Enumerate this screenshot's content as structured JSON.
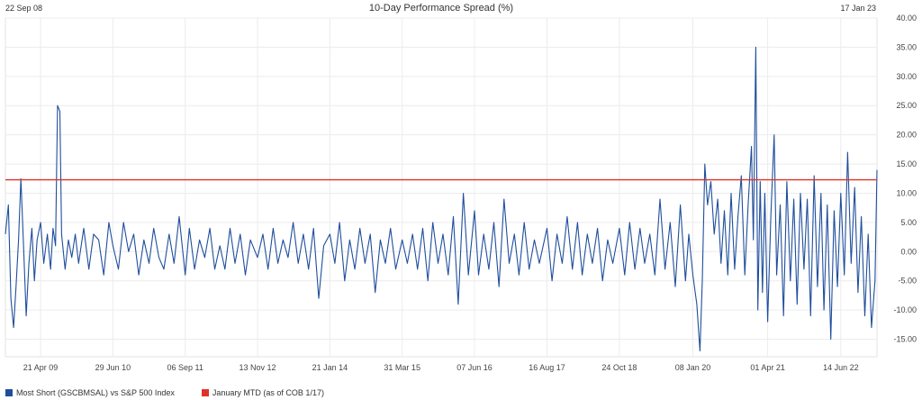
{
  "chart_data": {
    "type": "line",
    "title": "10-Day Performance Spread (%)",
    "start_label": "22 Sep 08",
    "end_label": "17 Jan 23",
    "x_range": [
      "2008-09-22",
      "2023-01-17"
    ],
    "ylim": [
      -18,
      40
    ],
    "y_ticks": [
      "40.00",
      "35.00",
      "30.00",
      "25.00",
      "20.00",
      "15.00",
      "10.00",
      "5.00",
      "0.00",
      "-5.00",
      "-10.00",
      "-15.00"
    ],
    "x_ticks": [
      {
        "label": "21 Apr 09",
        "date": "2009-04-21"
      },
      {
        "label": "29 Jun 10",
        "date": "2010-06-29"
      },
      {
        "label": "06 Sep 11",
        "date": "2011-09-06"
      },
      {
        "label": "13 Nov 12",
        "date": "2012-11-13"
      },
      {
        "label": "21 Jan 14",
        "date": "2014-01-21"
      },
      {
        "label": "31 Mar 15",
        "date": "2015-03-31"
      },
      {
        "label": "07 Jun 16",
        "date": "2016-06-07"
      },
      {
        "label": "16 Aug 17",
        "date": "2017-08-16"
      },
      {
        "label": "24 Oct 18",
        "date": "2018-10-24"
      },
      {
        "label": "08 Jan 20",
        "date": "2020-01-08"
      },
      {
        "label": "01 Apr 21",
        "date": "2021-04-01"
      },
      {
        "label": "14 Jun 22",
        "date": "2022-06-14"
      }
    ],
    "series": [
      {
        "name": "Most Short (GSCBMSAL) vs S&P 500 Index",
        "color": "#1f4e9c",
        "points": [
          [
            "2008-09-22",
            3
          ],
          [
            "2008-10-10",
            8
          ],
          [
            "2008-10-25",
            -8
          ],
          [
            "2008-11-10",
            -13
          ],
          [
            "2008-11-25",
            -6
          ],
          [
            "2008-12-10",
            2
          ],
          [
            "2008-12-24",
            12.5
          ],
          [
            "2009-01-10",
            0
          ],
          [
            "2009-01-25",
            -11
          ],
          [
            "2009-02-10",
            -2
          ],
          [
            "2009-02-28",
            4
          ],
          [
            "2009-03-15",
            -5
          ],
          [
            "2009-03-31",
            2
          ],
          [
            "2009-04-21",
            5
          ],
          [
            "2009-05-10",
            -2
          ],
          [
            "2009-06-01",
            3
          ],
          [
            "2009-06-20",
            -3
          ],
          [
            "2009-07-05",
            4
          ],
          [
            "2009-07-20",
            1
          ],
          [
            "2009-08-01",
            25
          ],
          [
            "2009-08-15",
            24
          ],
          [
            "2009-08-25",
            3
          ],
          [
            "2009-09-15",
            -3
          ],
          [
            "2009-10-05",
            2
          ],
          [
            "2009-10-25",
            -1
          ],
          [
            "2009-11-15",
            3
          ],
          [
            "2009-12-05",
            -2
          ],
          [
            "2010-01-05",
            4
          ],
          [
            "2010-02-05",
            -3
          ],
          [
            "2010-03-05",
            3
          ],
          [
            "2010-04-05",
            2
          ],
          [
            "2010-05-05",
            -4
          ],
          [
            "2010-06-05",
            5
          ],
          [
            "2010-06-29",
            1
          ],
          [
            "2010-08-01",
            -3
          ],
          [
            "2010-09-01",
            5
          ],
          [
            "2010-10-01",
            0
          ],
          [
            "2010-11-01",
            3
          ],
          [
            "2010-12-01",
            -4
          ],
          [
            "2011-01-01",
            2
          ],
          [
            "2011-02-01",
            -2
          ],
          [
            "2011-03-01",
            4
          ],
          [
            "2011-04-01",
            -1
          ],
          [
            "2011-05-01",
            -3
          ],
          [
            "2011-06-01",
            3
          ],
          [
            "2011-07-01",
            -2
          ],
          [
            "2011-08-01",
            6
          ],
          [
            "2011-09-06",
            -4
          ],
          [
            "2011-10-01",
            4
          ],
          [
            "2011-11-01",
            -3
          ],
          [
            "2011-12-01",
            2
          ],
          [
            "2012-01-01",
            -1
          ],
          [
            "2012-02-01",
            4
          ],
          [
            "2012-03-01",
            -3
          ],
          [
            "2012-04-01",
            1
          ],
          [
            "2012-05-01",
            -3
          ],
          [
            "2012-06-01",
            4
          ],
          [
            "2012-07-01",
            -2
          ],
          [
            "2012-08-01",
            3
          ],
          [
            "2012-09-01",
            -4
          ],
          [
            "2012-10-01",
            2
          ],
          [
            "2012-11-13",
            -1
          ],
          [
            "2012-12-15",
            3
          ],
          [
            "2013-01-15",
            -3
          ],
          [
            "2013-02-15",
            4
          ],
          [
            "2013-03-15",
            -2
          ],
          [
            "2013-04-15",
            2
          ],
          [
            "2013-05-15",
            -1
          ],
          [
            "2013-06-15",
            5
          ],
          [
            "2013-07-15",
            -2
          ],
          [
            "2013-08-15",
            3
          ],
          [
            "2013-09-15",
            -3
          ],
          [
            "2013-10-15",
            4
          ],
          [
            "2013-11-15",
            -8
          ],
          [
            "2013-12-15",
            1
          ],
          [
            "2014-01-21",
            3
          ],
          [
            "2014-02-20",
            -2
          ],
          [
            "2014-03-20",
            5
          ],
          [
            "2014-04-20",
            -5
          ],
          [
            "2014-05-20",
            2
          ],
          [
            "2014-06-20",
            -3
          ],
          [
            "2014-07-20",
            4
          ],
          [
            "2014-08-20",
            -2
          ],
          [
            "2014-09-20",
            3
          ],
          [
            "2014-10-20",
            -7
          ],
          [
            "2014-11-20",
            2
          ],
          [
            "2014-12-20",
            -2
          ],
          [
            "2015-01-20",
            4
          ],
          [
            "2015-02-20",
            -3
          ],
          [
            "2015-03-31",
            2
          ],
          [
            "2015-05-01",
            -2
          ],
          [
            "2015-06-01",
            3
          ],
          [
            "2015-07-01",
            -3
          ],
          [
            "2015-08-01",
            4
          ],
          [
            "2015-09-01",
            -5
          ],
          [
            "2015-10-01",
            5
          ],
          [
            "2015-11-01",
            -2
          ],
          [
            "2015-12-01",
            3
          ],
          [
            "2016-01-01",
            -4
          ],
          [
            "2016-02-01",
            6
          ],
          [
            "2016-03-01",
            -9
          ],
          [
            "2016-04-01",
            10
          ],
          [
            "2016-05-01",
            -4
          ],
          [
            "2016-06-07",
            7
          ],
          [
            "2016-07-01",
            -4
          ],
          [
            "2016-08-01",
            3
          ],
          [
            "2016-09-01",
            -3
          ],
          [
            "2016-10-01",
            5
          ],
          [
            "2016-11-01",
            -6
          ],
          [
            "2016-12-01",
            9
          ],
          [
            "2017-01-01",
            -2
          ],
          [
            "2017-02-01",
            3
          ],
          [
            "2017-03-01",
            -4
          ],
          [
            "2017-04-01",
            5
          ],
          [
            "2017-05-01",
            -3
          ],
          [
            "2017-06-01",
            2
          ],
          [
            "2017-07-01",
            -2
          ],
          [
            "2017-08-16",
            4
          ],
          [
            "2017-09-15",
            -5
          ],
          [
            "2017-10-15",
            3
          ],
          [
            "2017-11-15",
            -2
          ],
          [
            "2017-12-15",
            6
          ],
          [
            "2018-01-15",
            -3
          ],
          [
            "2018-02-15",
            5
          ],
          [
            "2018-03-15",
            -4
          ],
          [
            "2018-04-15",
            3
          ],
          [
            "2018-05-15",
            -2
          ],
          [
            "2018-06-15",
            4
          ],
          [
            "2018-07-15",
            -5
          ],
          [
            "2018-08-15",
            2
          ],
          [
            "2018-09-15",
            -2
          ],
          [
            "2018-10-24",
            4
          ],
          [
            "2018-11-25",
            -4
          ],
          [
            "2018-12-25",
            5
          ],
          [
            "2019-01-25",
            -3
          ],
          [
            "2019-02-25",
            4
          ],
          [
            "2019-03-25",
            -2
          ],
          [
            "2019-04-25",
            3
          ],
          [
            "2019-05-25",
            -4
          ],
          [
            "2019-06-25",
            9
          ],
          [
            "2019-07-25",
            -3
          ],
          [
            "2019-08-25",
            5
          ],
          [
            "2019-09-25",
            -6
          ],
          [
            "2019-10-25",
            8
          ],
          [
            "2019-11-25",
            -5
          ],
          [
            "2019-12-15",
            3
          ],
          [
            "2020-01-08",
            -4
          ],
          [
            "2020-02-01",
            -9
          ],
          [
            "2020-02-20",
            -17
          ],
          [
            "2020-03-05",
            -5
          ],
          [
            "2020-03-20",
            15
          ],
          [
            "2020-04-05",
            8
          ],
          [
            "2020-04-25",
            12
          ],
          [
            "2020-05-15",
            3
          ],
          [
            "2020-06-05",
            9
          ],
          [
            "2020-06-25",
            -2
          ],
          [
            "2020-07-15",
            7
          ],
          [
            "2020-08-05",
            -4
          ],
          [
            "2020-08-25",
            10
          ],
          [
            "2020-09-15",
            -3
          ],
          [
            "2020-10-05",
            6
          ],
          [
            "2020-10-25",
            13
          ],
          [
            "2020-11-15",
            -4
          ],
          [
            "2020-12-05",
            8
          ],
          [
            "2020-12-25",
            18
          ],
          [
            "2021-01-05",
            2
          ],
          [
            "2021-01-20",
            35
          ],
          [
            "2021-02-01",
            -10
          ],
          [
            "2021-02-15",
            12
          ],
          [
            "2021-03-01",
            -7
          ],
          [
            "2021-03-15",
            10
          ],
          [
            "2021-04-01",
            -12
          ],
          [
            "2021-04-20",
            6
          ],
          [
            "2021-05-10",
            20
          ],
          [
            "2021-05-25",
            -4
          ],
          [
            "2021-06-15",
            8
          ],
          [
            "2021-07-05",
            -11
          ],
          [
            "2021-07-25",
            12
          ],
          [
            "2021-08-15",
            -5
          ],
          [
            "2021-09-05",
            9
          ],
          [
            "2021-09-25",
            -9
          ],
          [
            "2021-10-15",
            10
          ],
          [
            "2021-11-05",
            -3
          ],
          [
            "2021-11-25",
            9
          ],
          [
            "2021-12-15",
            -11
          ],
          [
            "2022-01-05",
            13
          ],
          [
            "2022-01-25",
            -6
          ],
          [
            "2022-02-15",
            10
          ],
          [
            "2022-03-05",
            -10
          ],
          [
            "2022-03-25",
            8
          ],
          [
            "2022-04-15",
            -15
          ],
          [
            "2022-05-05",
            7
          ],
          [
            "2022-05-25",
            -6
          ],
          [
            "2022-06-14",
            10
          ],
          [
            "2022-07-05",
            -4
          ],
          [
            "2022-07-25",
            17
          ],
          [
            "2022-08-15",
            -2
          ],
          [
            "2022-09-05",
            11
          ],
          [
            "2022-09-25",
            -7
          ],
          [
            "2022-10-15",
            6
          ],
          [
            "2022-11-05",
            -11
          ],
          [
            "2022-11-25",
            3
          ],
          [
            "2022-12-15",
            -13
          ],
          [
            "2023-01-05",
            -5
          ],
          [
            "2023-01-17",
            14
          ]
        ]
      },
      {
        "name": "January MTD (as of COB 1/17)",
        "color": "#e0322a",
        "constant": 12.3
      }
    ],
    "grid": true,
    "legend": "bottom-left"
  }
}
